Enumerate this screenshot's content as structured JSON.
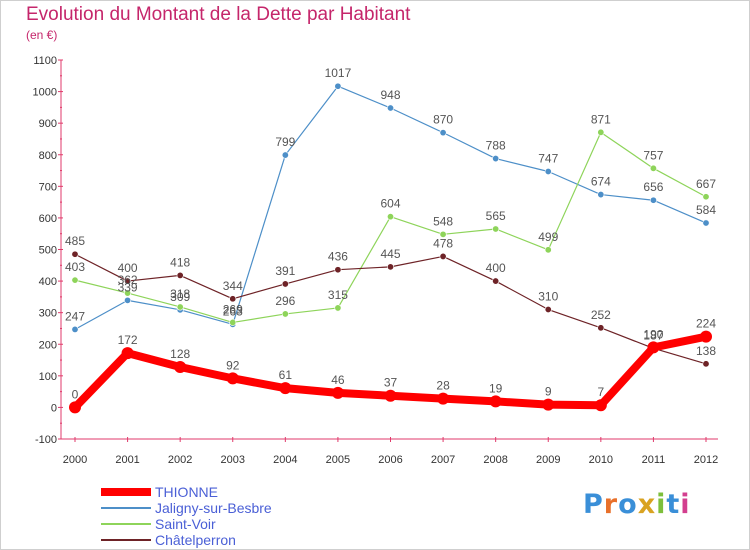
{
  "title": "Evolution du Montant de la Dette par Habitant",
  "subtitle": "(en €)",
  "logo": {
    "text": "Proxiti",
    "colors": [
      "#3a8fd8",
      "#e8702a",
      "#3a8fd8",
      "#d9a321",
      "#7dbf3b",
      "#3a8fd8",
      "#d33f8f"
    ]
  },
  "chart_data": {
    "type": "line",
    "x": [
      "2000",
      "2001",
      "2002",
      "2003",
      "2004",
      "2005",
      "2006",
      "2007",
      "2008",
      "2009",
      "2010",
      "2011",
      "2012"
    ],
    "ylim": [
      -100,
      1100
    ],
    "yticks": [
      -100,
      0,
      100,
      200,
      300,
      400,
      500,
      600,
      700,
      800,
      900,
      1000,
      1100
    ],
    "grid": false,
    "legend_position": "bottom-left",
    "series": [
      {
        "name": "Jaligny-sur-Besbre",
        "color": "#4d8fc8",
        "values": [
          247,
          339,
          309,
          263,
          799,
          1017,
          948,
          870,
          788,
          747,
          674,
          656,
          584
        ]
      },
      {
        "name": "Saint-Voir",
        "color": "#8ed45a",
        "values": [
          403,
          362,
          318,
          269,
          296,
          315,
          604,
          548,
          565,
          499,
          871,
          757,
          667
        ]
      },
      {
        "name": "Châtelperron",
        "color": "#6e2327",
        "values": [
          485,
          400,
          418,
          344,
          391,
          436,
          445,
          478,
          400,
          310,
          252,
          187,
          138
        ]
      },
      {
        "name": "THIONNE",
        "color": "#ff0000",
        "values": [
          0,
          172,
          128,
          92,
          61,
          46,
          37,
          28,
          19,
          9,
          7,
          190,
          224
        ]
      }
    ],
    "legend_order": [
      "THIONNE",
      "Jaligny-sur-Besbre",
      "Saint-Voir",
      "Châtelperron"
    ]
  }
}
